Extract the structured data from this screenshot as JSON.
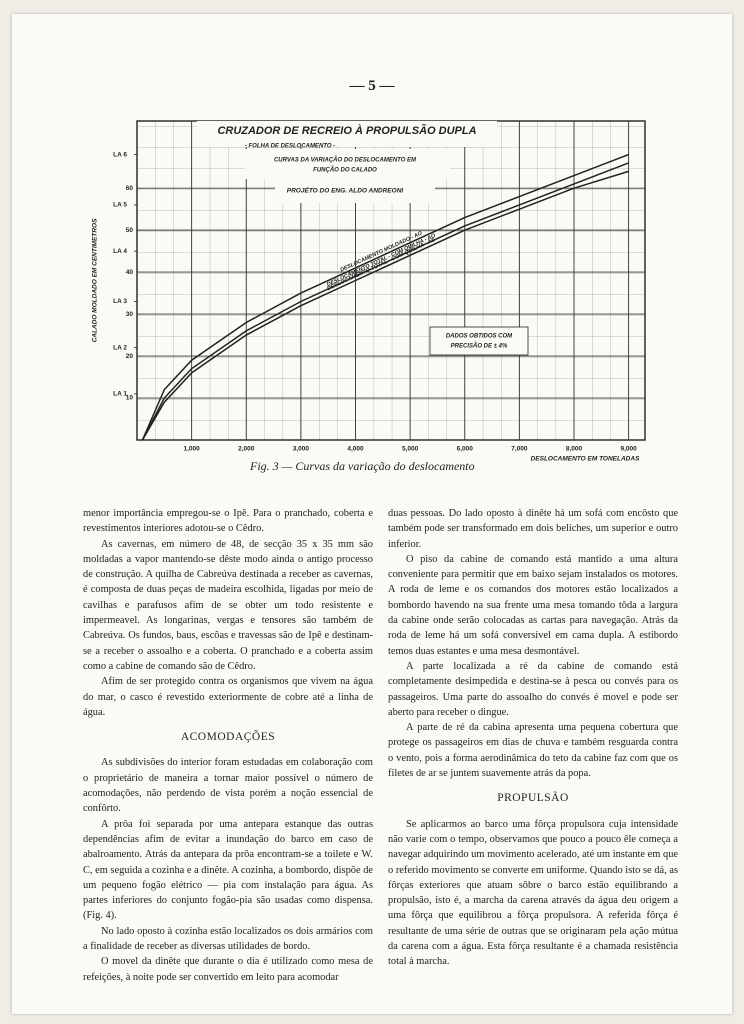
{
  "page_number": "— 5 —",
  "chart_data": {
    "type": "line",
    "title": "CRUZADOR DE RECREIO À PROPULSÃO DUPLA",
    "subtitle": "- FOLHA DE DESLOCAMENTO -",
    "description_lines": [
      "CURVAS DA VARIAÇÃO DO DESLOCAMENTO EM",
      "FUNÇÃO DO CALADO"
    ],
    "author": "PROJÉTO DO ENG. ALDO ANDREONI",
    "note_lines": [
      "DADOS OBTIDOS COM",
      "PRECISÃO DE ± 4%"
    ],
    "x_label": "DESLOCAMENTO EM TONELADAS",
    "y_label": "CALADO MOLDADO EM CENTIMETROS",
    "x": [
      100,
      500,
      1000,
      2000,
      3000,
      4000,
      5000,
      6000,
      7000,
      8000,
      9000
    ],
    "series": [
      {
        "name": "DESLOCAMENTO MOLDADO - AO",
        "color": "#222222",
        "values": [
          0,
          12,
          19,
          28,
          35,
          41,
          47,
          53,
          58,
          63,
          68
        ]
      },
      {
        "name": "DESLOCAMENTO TOTAL - COM QUILHA - AO",
        "color": "#222222",
        "values": [
          0,
          10,
          17,
          26,
          33,
          39,
          45,
          51,
          56,
          61,
          66
        ]
      },
      {
        "name": "DESLOCAMENTO TOTAL - COM QUILHA - AS",
        "color": "#222222",
        "values": [
          0,
          9,
          16,
          25,
          32,
          38,
          44,
          50,
          55,
          60,
          64
        ]
      }
    ],
    "xlim": [
      0,
      9300
    ],
    "ylim": [
      0,
      76
    ],
    "xticks": [
      {
        "value": 1000,
        "label": "1,000"
      },
      {
        "value": 2000,
        "label": "2,000"
      },
      {
        "value": 3000,
        "label": "3,000"
      },
      {
        "value": 4000,
        "label": "4,000"
      },
      {
        "value": 5000,
        "label": "5,000"
      },
      {
        "value": 6000,
        "label": "6,000"
      },
      {
        "value": 7000,
        "label": "7,000"
      },
      {
        "value": 8000,
        "label": "8,000"
      },
      {
        "value": 9000,
        "label": "9,000"
      }
    ],
    "yticks": [
      10,
      20,
      30,
      40,
      50,
      60
    ],
    "y2lim": [
      0,
      76
    ],
    "y2ticks": [
      {
        "value": 11,
        "label": "LA 1"
      },
      {
        "value": 22,
        "label": "LA 2"
      },
      {
        "value": 33,
        "label": "LA 3"
      },
      {
        "value": 45,
        "label": "LA 4"
      },
      {
        "value": 56,
        "label": "LA 5"
      },
      {
        "value": 68,
        "label": "LA 6"
      }
    ],
    "grid": true
  },
  "caption": "Fig. 3 — Curvas da variação do deslocamento",
  "left_column": {
    "paragraphs": [
      "menor importância empregou-se o Ipê. Para o pranchado, coberta e revestimentos interiores adotou-se o Cêdro.",
      "As cavernas, em número de 48, de secção 35 x 35 mm são moldadas a vapor mantendo-se dêste modo ainda o antigo processo de construção. A quilha de Cabreúva destinada a receber as cavernas, é composta de duas peças de madeira escolhida, ligadas por meio de cavilhas e parafusos afim de se obter um todo resistente e impermeavel. As longarinas, vergas e tensores são também de Cabreúva. Os fundos, baus, escôas e travessas são de Ipê e destinam-se a receber o assoalho e a coberta. O pranchado e a coberta assim como a cabine de comando são de Cêdro.",
      "Afim de ser protegido contra os organismos que vivem na água do mar, o casco é revestido exteriormente de cobre até a linha de água."
    ],
    "heading": "ACOMODAÇÕES",
    "section_paragraphs": [
      "As subdivisões do interior foram estudadas em colaboração com o proprietário de maneira a tornar maior possível o número de acomodações, não perdendo de vista porém a noção essencial de confôrto.",
      "A prôa foi separada por uma antepara estanque das outras dependências afim de evitar a inundação do barco em caso de abalroamento. Atrás da antepara da prôa encontram-se a toilete e W. C, em seguida a cozinha e a dinête. A cozinha, a bombordo, dispõe de um pequeno fogão elétrico — pia com instalação para água. As partes inferiores do conjunto fogão-pia são usadas como dispensa. (Fig. 4).",
      "No lado oposto à cozinha estão localizados os dois armários com a finalidade de receber as diversas utilidades de bordo.",
      "O movel da dinête que durante o dia é utilizado como mesa de refeições, à noite pode ser convertido em leito para acomodar"
    ]
  },
  "right_column": {
    "paragraphs": [
      "duas pessoas. Do lado oposto à dinête há um sofá com encôsto que também pode ser transformado em dois beliches, um superior e outro inferior.",
      "O piso da cabine de comando está mantido a uma altura conveniente para permitir que em baixo sejam instalados os motores. A roda de leme e os comandos dos motores estão localizados a bombordo havendo na sua frente uma mesa tomando tôda a largura da cabine onde serão colocadas as cartas para navegação. Atrás da roda de leme há um sofá conversível em cama dupla. A estibordo temos duas estantes e uma mesa desmontável.",
      "A parte localizada a ré da cabine de comando está completamente desimpedida e destina-se à pesca ou convés para os passageiros. Uma parte do assoalho do convés é movel e pode ser aberto para receber o dingue.",
      "A parte de ré da cabina apresenta uma pequena cobertura que protege os passageiros em dias de chuva e também resguarda contra o vento, pois a forma aerodinâmica do teto da cabine faz com que os filetes de ar se juntem suavemente atrás da popa."
    ],
    "heading": "PROPULSÃO",
    "section_paragraphs": [
      "Se aplicarmos ao barco uma fôrça propulsora cuja intensidade não varie com o tempo, observamos que pouco a pouco êle começa a navegar adquirindo um movimento acelerado, até um instante em que o referido movimento se converte em uniforme. Quando isto se dá, as fôrças exteriores que atuam sôbre o barco estão equilibrando a propulsão, isto é, a marcha da carena através da água deu origem a uma fôrça que equilibrou a fôrça propulsora. A referida fôrça é resultante de uma série de outras que se originaram pela ação mútua da carena com a água. Esta fôrça resultante é a chamada resistência total à marcha."
    ]
  }
}
